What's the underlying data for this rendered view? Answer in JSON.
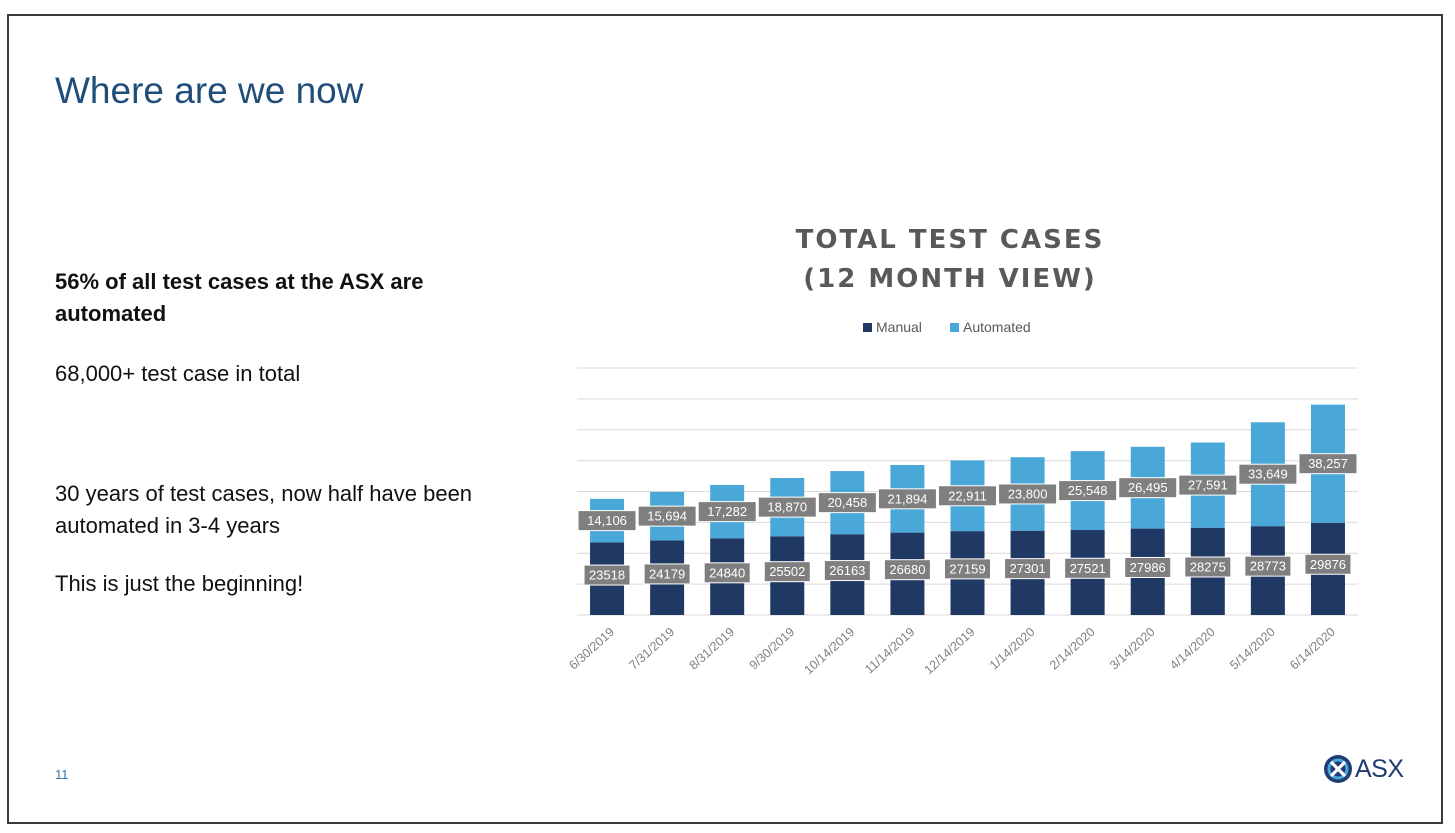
{
  "slide": {
    "title": "Where are we now",
    "bullets": [
      "56% of all test cases at the ASX are automated",
      "68,000+ test case in total",
      "30 years of test cases, now half have been automated in 3-4 years",
      "This is just the beginning!"
    ],
    "page_number": "11",
    "logo_text": "ASX"
  },
  "colors": {
    "title": "#1f4e79",
    "manual": "#1f3864",
    "automated": "#4aa8d8",
    "label_box": "#7f7f7f",
    "gridline": "#d9d9d9"
  },
  "chart_data": {
    "type": "bar",
    "stacked": true,
    "title_lines": [
      "TOTAL TEST CASES",
      "(12 MONTH VIEW)"
    ],
    "legend_position": "top",
    "grid": true,
    "categories": [
      "6/30/2019",
      "7/31/2019",
      "8/31/2019",
      "9/30/2019",
      "10/14/2019",
      "11/14/2019",
      "12/14/2019",
      "1/14/2020",
      "2/14/2020",
      "3/14/2020",
      "4/14/2020",
      "5/14/2020",
      "6/14/2020"
    ],
    "series": [
      {
        "name": "Manual",
        "values": [
          23518,
          24179,
          24840,
          25502,
          26163,
          26680,
          27159,
          27301,
          27521,
          27986,
          28275,
          28773,
          29876
        ],
        "labels": [
          "23518",
          "24179",
          "24840",
          "25502",
          "26163",
          "26680",
          "27159",
          "27301",
          "27521",
          "27986",
          "28275",
          "28773",
          "29876"
        ]
      },
      {
        "name": "Automated",
        "values": [
          14106,
          15694,
          17282,
          18870,
          20458,
          21894,
          22911,
          23800,
          25548,
          26495,
          27591,
          33649,
          38257
        ],
        "labels": [
          "14,106",
          "15,694",
          "17,282",
          "18,870",
          "20,458",
          "21,894",
          "22,911",
          "23,800",
          "25,548",
          "26,495",
          "27,591",
          "33,649",
          "38,257"
        ]
      }
    ],
    "ylim": [
      0,
      80000
    ]
  }
}
